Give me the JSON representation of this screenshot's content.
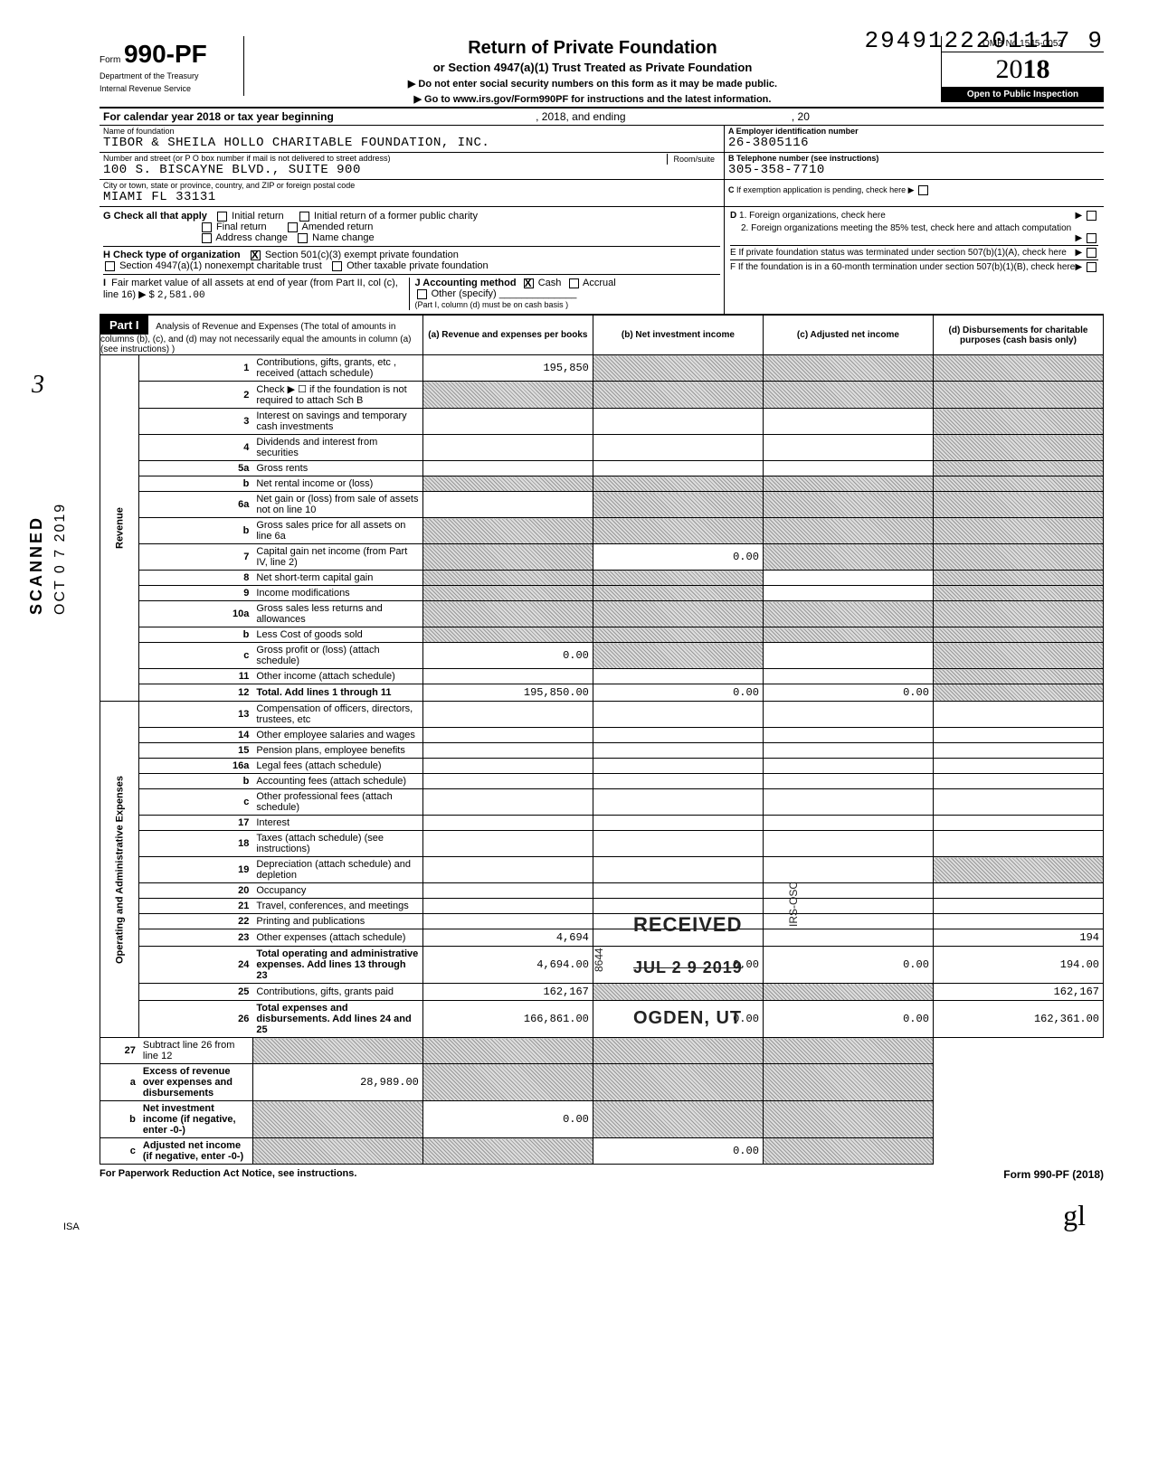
{
  "pageNumberTop": "2949122201117",
  "pageNumberTrail": "9",
  "sideText": "SCANNED",
  "sideDate": "OCT 0 7 2019",
  "marginal": "3",
  "form": {
    "word": "Form",
    "number": "990-PF",
    "dept1": "Department of the Treasury",
    "dept2": "Internal Revenue Service"
  },
  "title": {
    "main": "Return of Private Foundation",
    "sub": "or Section 4947(a)(1) Trust Treated as Private Foundation",
    "instr1": "▶ Do not enter social security numbers on this form as it may be made public.",
    "instr2": "▶ Go to www.irs.gov/Form990PF for instructions and the latest information."
  },
  "yearBox": {
    "omb": "OMB No 1545-0052",
    "yearPrefix": "20",
    "yearBold": "18",
    "open": "Open to Public Inspection"
  },
  "calendar": {
    "left": "For calendar year 2018 or tax year beginning",
    "mid": ", 2018, and ending",
    "right": ", 20"
  },
  "idBlock": {
    "nameLabel": "Name of foundation",
    "name": "TIBOR & SHEILA HOLLO CHARITABLE FOUNDATION, INC.",
    "addrLabel": "Number and street (or P O box number if mail is not delivered to street address)",
    "roomLabel": "Room/suite",
    "addr": "100 S. BISCAYNE BLVD., SUITE 900",
    "cityLabel": "City or town, state or province, country, and ZIP or foreign postal code",
    "city": "MIAMI FL 33131",
    "aLabel": "A  Employer identification number",
    "aVal": "26-3805116",
    "bLabel": "B  Telephone number (see instructions)",
    "bVal": "305-358-7710",
    "cLabel": "C  If exemption application is pending, check here ▶"
  },
  "blockG": {
    "label": "G  Check all that apply",
    "opts": [
      "Initial return",
      "Final return",
      "Address change",
      "Initial return of a former public charity",
      "Amended return",
      "Name change"
    ]
  },
  "blockH": {
    "label": "H  Check type of organization",
    "opt1": "Section 501(c)(3) exempt private foundation",
    "opt2": "Section 4947(a)(1) nonexempt charitable trust",
    "opt3": "Other taxable private foundation"
  },
  "blockI": {
    "label": "I   Fair market value of all assets at end of year (from Part II, col (c), line 16) ▶ $",
    "val": "2,581.00",
    "jLabel": "J   Accounting method",
    "jOpts": [
      "Cash",
      "Accrual",
      "Other (specify)"
    ],
    "jNote": "(Part I, column (d) must be on cash basis )"
  },
  "blockD": {
    "d1": "D  1. Foreign organizations, check here",
    "d2": "2. Foreign organizations meeting the 85% test, check here and attach computation",
    "e": "E  If private foundation status was terminated under section 507(b)(1)(A), check here",
    "f": "F  If the foundation is in a 60-month termination under section 507(b)(1)(B), check here"
  },
  "part1": {
    "head": "Part I",
    "desc": "Analysis of Revenue and Expenses (The total of amounts in columns (b), (c), and (d) may not necessarily equal the amounts in column (a) (see instructions) )",
    "cols": [
      "(a) Revenue and expenses per books",
      "(b) Net investment income",
      "(c) Adjusted net income",
      "(d) Disbursements for charitable purposes (cash basis only)"
    ]
  },
  "revLabel": "Revenue",
  "expLabel": "Operating and Administrative Expenses",
  "rows": [
    {
      "n": "1",
      "d": "Contributions, gifts, grants, etc , received (attach schedule)",
      "a": "195,850",
      "as": false,
      "bs": true,
      "cs": true,
      "ds": true
    },
    {
      "n": "2",
      "d": "Check ▶ ☐ if the foundation is not required to attach Sch B",
      "as": true,
      "bs": true,
      "cs": true,
      "ds": true
    },
    {
      "n": "3",
      "d": "Interest on savings and temporary cash investments",
      "ds": true
    },
    {
      "n": "4",
      "d": "Dividends and interest from securities",
      "ds": true
    },
    {
      "n": "5a",
      "d": "Gross rents",
      "ds": true
    },
    {
      "n": "b",
      "d": "Net rental income or (loss)",
      "as": true,
      "bs": true,
      "cs": true,
      "ds": true
    },
    {
      "n": "6a",
      "d": "Net gain or (loss) from sale of assets not on line 10",
      "bs": true,
      "cs": true,
      "ds": true
    },
    {
      "n": "b",
      "d": "Gross sales price for all assets on line 6a",
      "as": true,
      "bs": true,
      "cs": true,
      "ds": true
    },
    {
      "n": "7",
      "d": "Capital gain net income (from Part IV, line 2)",
      "as": true,
      "b": "0.00",
      "cs": true,
      "ds": true
    },
    {
      "n": "8",
      "d": "Net short-term capital gain",
      "as": true,
      "bs": true,
      "ds": true
    },
    {
      "n": "9",
      "d": "Income modifications",
      "as": true,
      "bs": true,
      "ds": true
    },
    {
      "n": "10a",
      "d": "Gross sales less returns and allowances",
      "as": true,
      "bs": true,
      "cs": true,
      "ds": true
    },
    {
      "n": "b",
      "d": "Less Cost of goods sold",
      "as": true,
      "bs": true,
      "cs": true,
      "ds": true
    },
    {
      "n": "c",
      "d": "Gross profit or (loss) (attach schedule)",
      "a": "0.00",
      "bs": true,
      "ds": true
    },
    {
      "n": "11",
      "d": "Other income (attach schedule)",
      "ds": true
    },
    {
      "n": "12",
      "d": "Total. Add lines 1 through 11",
      "bold": true,
      "a": "195,850.00",
      "b": "0.00",
      "c": "0.00",
      "ds": true
    }
  ],
  "expRows": [
    {
      "n": "13",
      "d": "Compensation of officers, directors, trustees, etc"
    },
    {
      "n": "14",
      "d": "Other employee salaries and wages"
    },
    {
      "n": "15",
      "d": "Pension plans, employee benefits"
    },
    {
      "n": "16a",
      "d": "Legal fees (attach schedule)"
    },
    {
      "n": "b",
      "d": "Accounting fees (attach schedule)"
    },
    {
      "n": "c",
      "d": "Other professional fees (attach schedule)"
    },
    {
      "n": "17",
      "d": "Interest"
    },
    {
      "n": "18",
      "d": "Taxes (attach schedule) (see instructions)"
    },
    {
      "n": "19",
      "d": "Depreciation (attach schedule) and depletion",
      "ds": true
    },
    {
      "n": "20",
      "d": "Occupancy"
    },
    {
      "n": "21",
      "d": "Travel, conferences, and meetings"
    },
    {
      "n": "22",
      "d": "Printing and publications"
    },
    {
      "n": "23",
      "d": "Other expenses (attach schedule)",
      "a": "4,694",
      "dcol": "194"
    },
    {
      "n": "24",
      "d": "Total operating and administrative expenses. Add lines 13 through 23",
      "bold": true,
      "a": "4,694.00",
      "b": "0.00",
      "c": "0.00",
      "dcol": "194.00"
    },
    {
      "n": "25",
      "d": "Contributions, gifts, grants paid",
      "a": "162,167",
      "bs": true,
      "cs": true,
      "dcol": "162,167"
    },
    {
      "n": "26",
      "d": "Total expenses and disbursements. Add lines 24 and 25",
      "bold": true,
      "a": "166,861.00",
      "b": "0.00",
      "c": "0.00",
      "dcol": "162,361.00"
    }
  ],
  "bottomRows": [
    {
      "n": "27",
      "d": "Subtract line 26 from line 12",
      "as": true,
      "bs": true,
      "cs": true,
      "ds": true
    },
    {
      "n": "a",
      "d": "Excess of revenue over expenses and disbursements",
      "bold": true,
      "a": "28,989.00",
      "bs": true,
      "cs": true,
      "ds": true
    },
    {
      "n": "b",
      "d": "Net investment income (if negative, enter -0-)",
      "bold": true,
      "as": true,
      "b": "0.00",
      "cs": true,
      "ds": true
    },
    {
      "n": "c",
      "d": "Adjusted net income (if negative, enter -0-)",
      "bold": true,
      "as": true,
      "bs": true,
      "c": "0.00",
      "ds": true
    }
  ],
  "stamps": {
    "received": "RECEIVED",
    "date": "JUL 2 9 2019",
    "ogden": "OGDEN, UT",
    "vert": "IRS-OSC",
    "vert2": "8644"
  },
  "footer": {
    "left": "For Paperwork Reduction Act Notice, see instructions.",
    "right": "Form 990-PF (2018)"
  },
  "isa": "ISA",
  "signature": "gl"
}
